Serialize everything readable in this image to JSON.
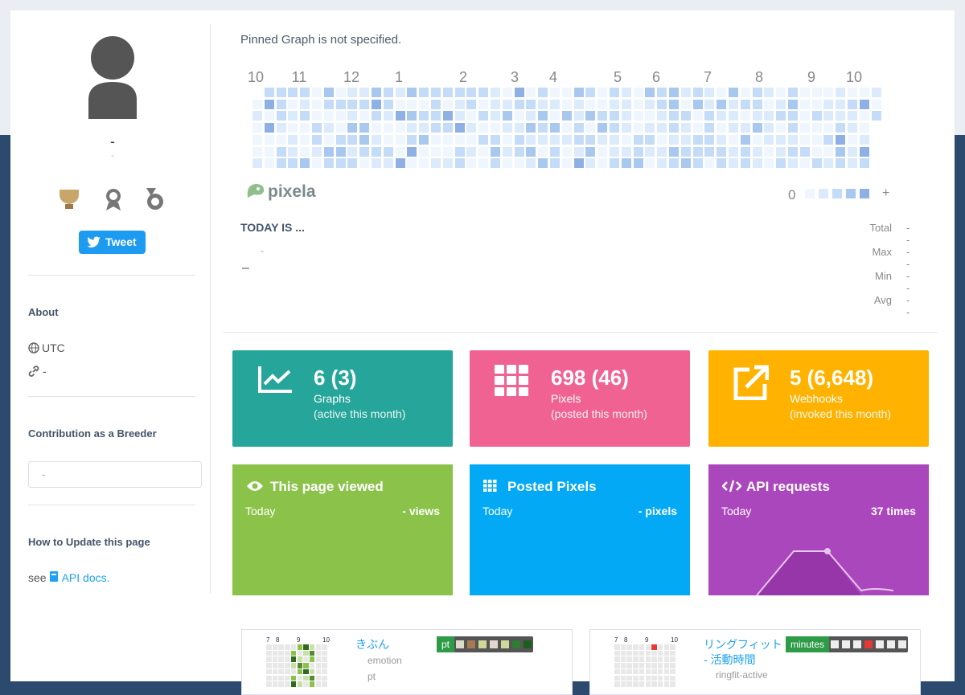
{
  "profile": {
    "name": "-",
    "sub": "-",
    "tweet": "Tweet"
  },
  "sidebar": {
    "about": "About",
    "timezone": "UTC",
    "link": "-",
    "breeder_title": "Contribution as a Breeder",
    "breeder_value": "-",
    "update_title": "How to Update this page",
    "update_prefix": "see",
    "update_link": "API docs."
  },
  "pinned": {
    "message": "Pinned Graph is not specified.",
    "months": [
      "10",
      "11",
      "12",
      "1",
      "2",
      "3",
      "4",
      "5",
      "6",
      "7",
      "8",
      "9",
      "10"
    ],
    "brand": "pixela",
    "legend_min": "0",
    "legend_max": "+",
    "today_title": "TODAY IS ...",
    "today_value": "-",
    "today_unit": "–",
    "stats": [
      {
        "label": "Total",
        "value": "- -"
      },
      {
        "label": "Max",
        "value": "- -"
      },
      {
        "label": "Min",
        "value": "- -"
      },
      {
        "label": "Avg",
        "value": "- -"
      }
    ]
  },
  "cards": [
    {
      "value": "6 (3)",
      "label": "Graphs",
      "sub": "(active this month)"
    },
    {
      "value": "698 (46)",
      "label": "Pixels",
      "sub": "(posted this month)"
    },
    {
      "value": "5 (6,648)",
      "label": "Webhooks",
      "sub": "(invoked this month)"
    }
  ],
  "panels": [
    {
      "title": "This page viewed",
      "period": "Today",
      "value": "- views"
    },
    {
      "title": "Posted Pixels",
      "period": "Today",
      "value": "- pixels"
    },
    {
      "title": "API requests",
      "period": "Today",
      "value": "37 times"
    }
  ],
  "graphs": [
    {
      "months": [
        "7",
        "8",
        "9",
        "10"
      ],
      "title": "きぶん",
      "tag": "emotion",
      "unit_type": "pt",
      "unit": "pt"
    },
    {
      "months": [
        "7",
        "8",
        "9",
        "10"
      ],
      "title": "リングフィット - 活動時間",
      "tag": "ringfit-active",
      "unit_type": "minutes"
    }
  ]
}
